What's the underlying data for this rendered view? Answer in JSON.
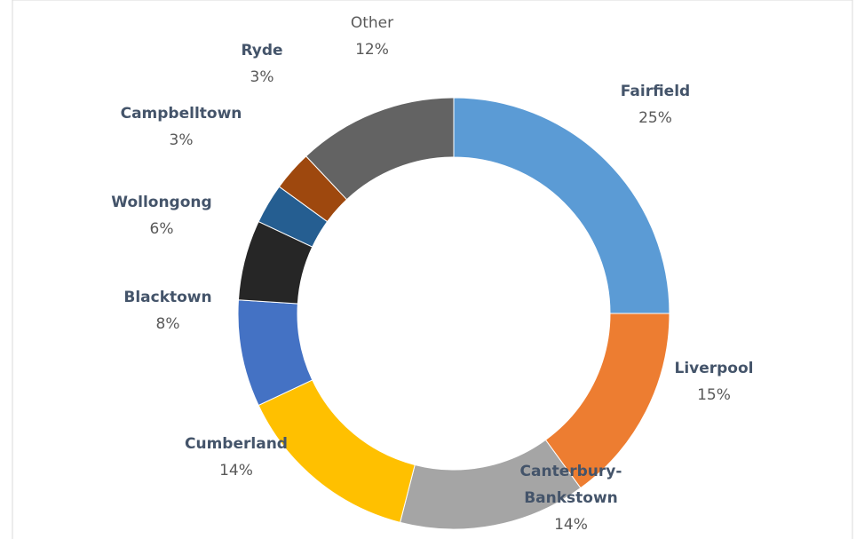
{
  "chart_data": {
    "type": "donut",
    "categories": [
      "Fairfield",
      "Liverpool",
      "Canterbury-Bankstown",
      "Cumberland",
      "Blacktown",
      "Wollongong",
      "Campbelltown",
      "Ryde",
      "Other"
    ],
    "values": [
      25,
      15,
      14,
      14,
      8,
      6,
      3,
      3,
      12
    ],
    "value_labels": [
      "25%",
      "15%",
      "14%",
      "14%",
      "8%",
      "6%",
      "3%",
      "3%",
      "12%"
    ],
    "colors": [
      "#5b9bd5",
      "#ed7d31",
      "#a5a5a5",
      "#ffc000",
      "#4472c4",
      "#262626",
      "#255e91",
      "#9e480e",
      "#636363"
    ]
  }
}
